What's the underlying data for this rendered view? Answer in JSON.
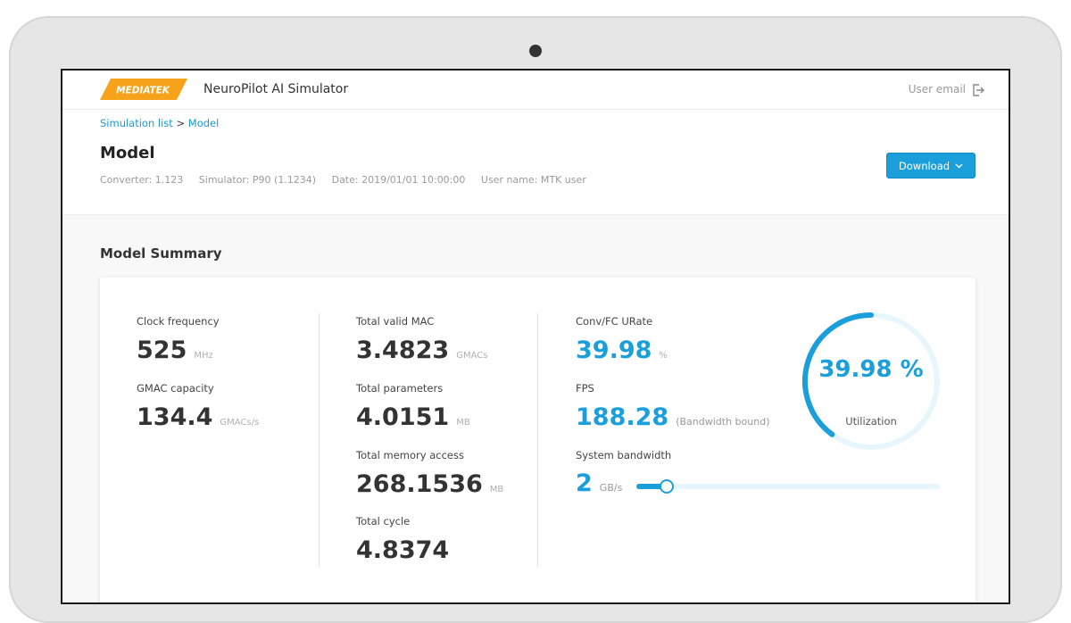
{
  "header": {
    "logo_text": "MEDIATEK",
    "app_title": "NeuroPilot AI Simulator",
    "user_email": "User email"
  },
  "breadcrumb": {
    "parent": "Simulation list",
    "separator": ">",
    "current": "Model"
  },
  "page": {
    "title": "Model",
    "meta": {
      "converter": "Converter: 1.123",
      "simulator": "Simulator: P90 (1.1234)",
      "date": "Date: 2019/01/01 10:00:00",
      "user_name": "User name: MTK user"
    },
    "download_label": "Download"
  },
  "summary": {
    "title": "Model Summary",
    "col1": {
      "clock_label": "Clock frequency",
      "clock_value": "525",
      "clock_unit": "MHz",
      "gmac_label": "GMAC capacity",
      "gmac_value": "134.4",
      "gmac_unit": "GMACs/s"
    },
    "col2": {
      "mac_label": "Total valid MAC",
      "mac_value": "3.4823",
      "mac_unit": "GMACs",
      "params_label": "Total parameters",
      "params_value": "4.0151",
      "params_unit": "MB",
      "mem_label": "Total memory access",
      "mem_value": "268.1536",
      "mem_unit": "MB",
      "cycle_label": "Total cycle",
      "cycle_value": "4.8374"
    },
    "col3": {
      "urate_label": "Conv/FC URate",
      "urate_value": "39.98",
      "urate_unit": "%",
      "fps_label": "FPS",
      "fps_value": "188.28",
      "fps_note": "(Bandwidth bound)",
      "bw_label": "System bandwidth",
      "bw_value": "2",
      "bw_unit": "GB/s",
      "bw_slider_fraction": 0.08
    },
    "gauge": {
      "value_text": "39.98 %",
      "label": "Utilization",
      "fraction": 0.3998
    }
  },
  "colors": {
    "accent": "#1b9fdb",
    "logo_orange": "#f7a21b",
    "gauge_track": "#e6f6fc"
  },
  "icons": {
    "logout": "logout-icon",
    "chevron": "chevron-down-icon"
  }
}
